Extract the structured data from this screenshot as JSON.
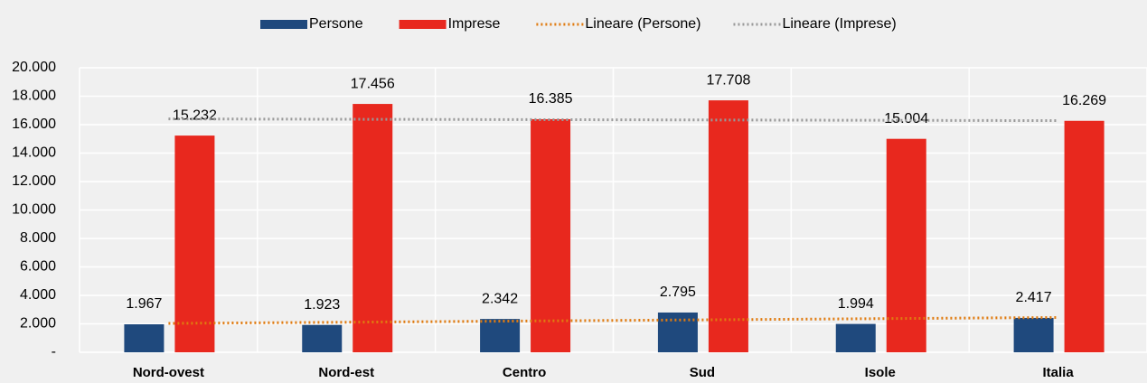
{
  "chart_data": {
    "type": "bar",
    "categories": [
      "Nord-ovest",
      "Nord-est",
      "Centro",
      "Sud",
      "Isole",
      "Italia"
    ],
    "series": [
      {
        "name": "Persone",
        "color": "#1f497d",
        "values": [
          1967,
          1923,
          2342,
          2795,
          1994,
          2417
        ],
        "value_labels": [
          "1.967",
          "1.923",
          "2.342",
          "2.795",
          "1.994",
          "2.417"
        ]
      },
      {
        "name": "Imprese",
        "color": "#e8281e",
        "values": [
          15232,
          17456,
          16385,
          17708,
          15004,
          16269
        ],
        "value_labels": [
          "15.232",
          "17.456",
          "16.385",
          "17.708",
          "15.004",
          "16.269"
        ]
      }
    ],
    "trendlines": [
      {
        "name": "Lineare (Persone)",
        "color": "#e07b10",
        "values": [
          2031,
          2114,
          2198,
          2281,
          2365,
          2448
        ]
      },
      {
        "name": "Lineare (Imprese)",
        "color": "#999999",
        "values": [
          16403,
          16379,
          16355,
          16330,
          16306,
          16282
        ]
      }
    ],
    "ylim": [
      0,
      20000
    ],
    "yticks": [
      {
        "value": 0,
        "label": "-"
      },
      {
        "value": 2000,
        "label": "2.000"
      },
      {
        "value": 4000,
        "label": "4.000"
      },
      {
        "value": 6000,
        "label": "6.000"
      },
      {
        "value": 8000,
        "label": "8.000"
      },
      {
        "value": 10000,
        "label": "10.000"
      },
      {
        "value": 12000,
        "label": "12.000"
      },
      {
        "value": 14000,
        "label": "14.000"
      },
      {
        "value": 16000,
        "label": "16.000"
      },
      {
        "value": 18000,
        "label": "18.000"
      },
      {
        "value": 20000,
        "label": "20.000"
      }
    ],
    "grid": true,
    "legend": "top"
  }
}
